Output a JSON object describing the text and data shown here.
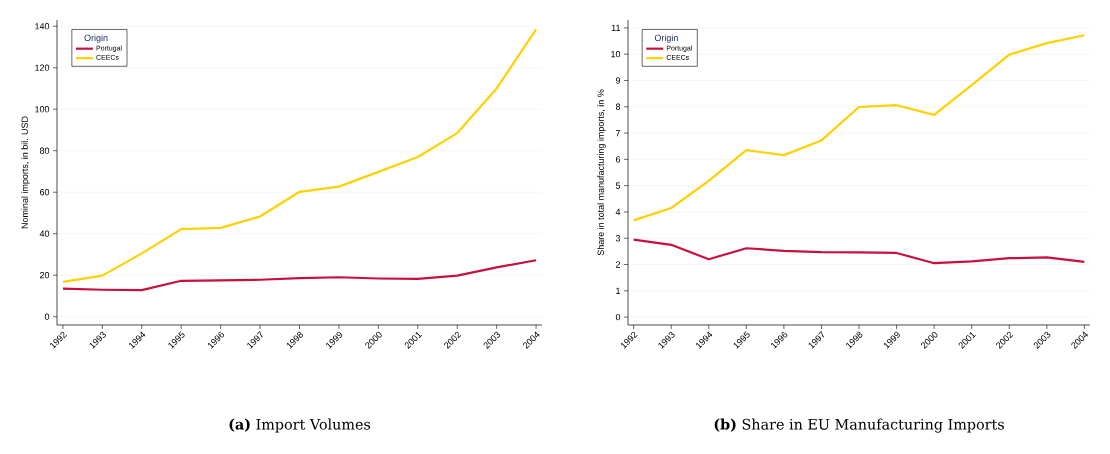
{
  "chart_data": [
    {
      "type": "line",
      "title": "**(a)** Import Volumes",
      "ylabel": "Nominal imports, in bil. USD",
      "legend_title": "Origin",
      "legend": "top left",
      "grid": "y",
      "categories": [
        "1992",
        "1993",
        "1994",
        "1995",
        "1996",
        "1997",
        "1998",
        "1999",
        "2000",
        "2001",
        "2002",
        "2003",
        "2004"
      ],
      "ylim": [
        -4,
        143
      ],
      "yticks": [
        0,
        20,
        40,
        60,
        80,
        100,
        120,
        140
      ],
      "series": [
        {
          "name": "Portugal",
          "color": "#c8103c",
          "values": [
            13.5,
            13,
            12.8,
            17.3,
            17.5,
            17.8,
            18.6,
            19,
            18.4,
            18.2,
            19.8,
            23.8,
            27.2
          ]
        },
        {
          "name": "CEECs",
          "color": "#ffd100",
          "values": [
            16.8,
            19.8,
            30.5,
            42.2,
            42.8,
            48.3,
            60.2,
            62.7,
            69.8,
            77,
            88.5,
            110,
            138.5
          ]
        }
      ]
    },
    {
      "type": "line",
      "title": "**(b)** Share in EU Manufacturing Imports",
      "ylabel": "Share in total manufacturing imports, in %",
      "legend_title": "Origin",
      "legend": "top left",
      "grid": "y",
      "categories": [
        "1992",
        "1993",
        "1994",
        "1995",
        "1996",
        "1997",
        "1998",
        "1999",
        "2000",
        "2001",
        "2002",
        "2003",
        "2004"
      ],
      "ylim": [
        -0.3,
        11.3
      ],
      "yticks": [
        0,
        1,
        2,
        3,
        4,
        5,
        6,
        7,
        8,
        9,
        10,
        11
      ],
      "series": [
        {
          "name": "Portugal",
          "color": "#c8103c",
          "values": [
            2.95,
            2.75,
            2.2,
            2.62,
            2.52,
            2.47,
            2.46,
            2.44,
            2.05,
            2.12,
            2.24,
            2.27,
            2.1
          ]
        },
        {
          "name": "CEECs",
          "color": "#ffd100",
          "values": [
            3.68,
            4.15,
            5.18,
            6.35,
            6.16,
            6.72,
            7.99,
            8.06,
            7.69,
            8.82,
            9.98,
            10.42,
            10.72
          ]
        }
      ]
    }
  ]
}
